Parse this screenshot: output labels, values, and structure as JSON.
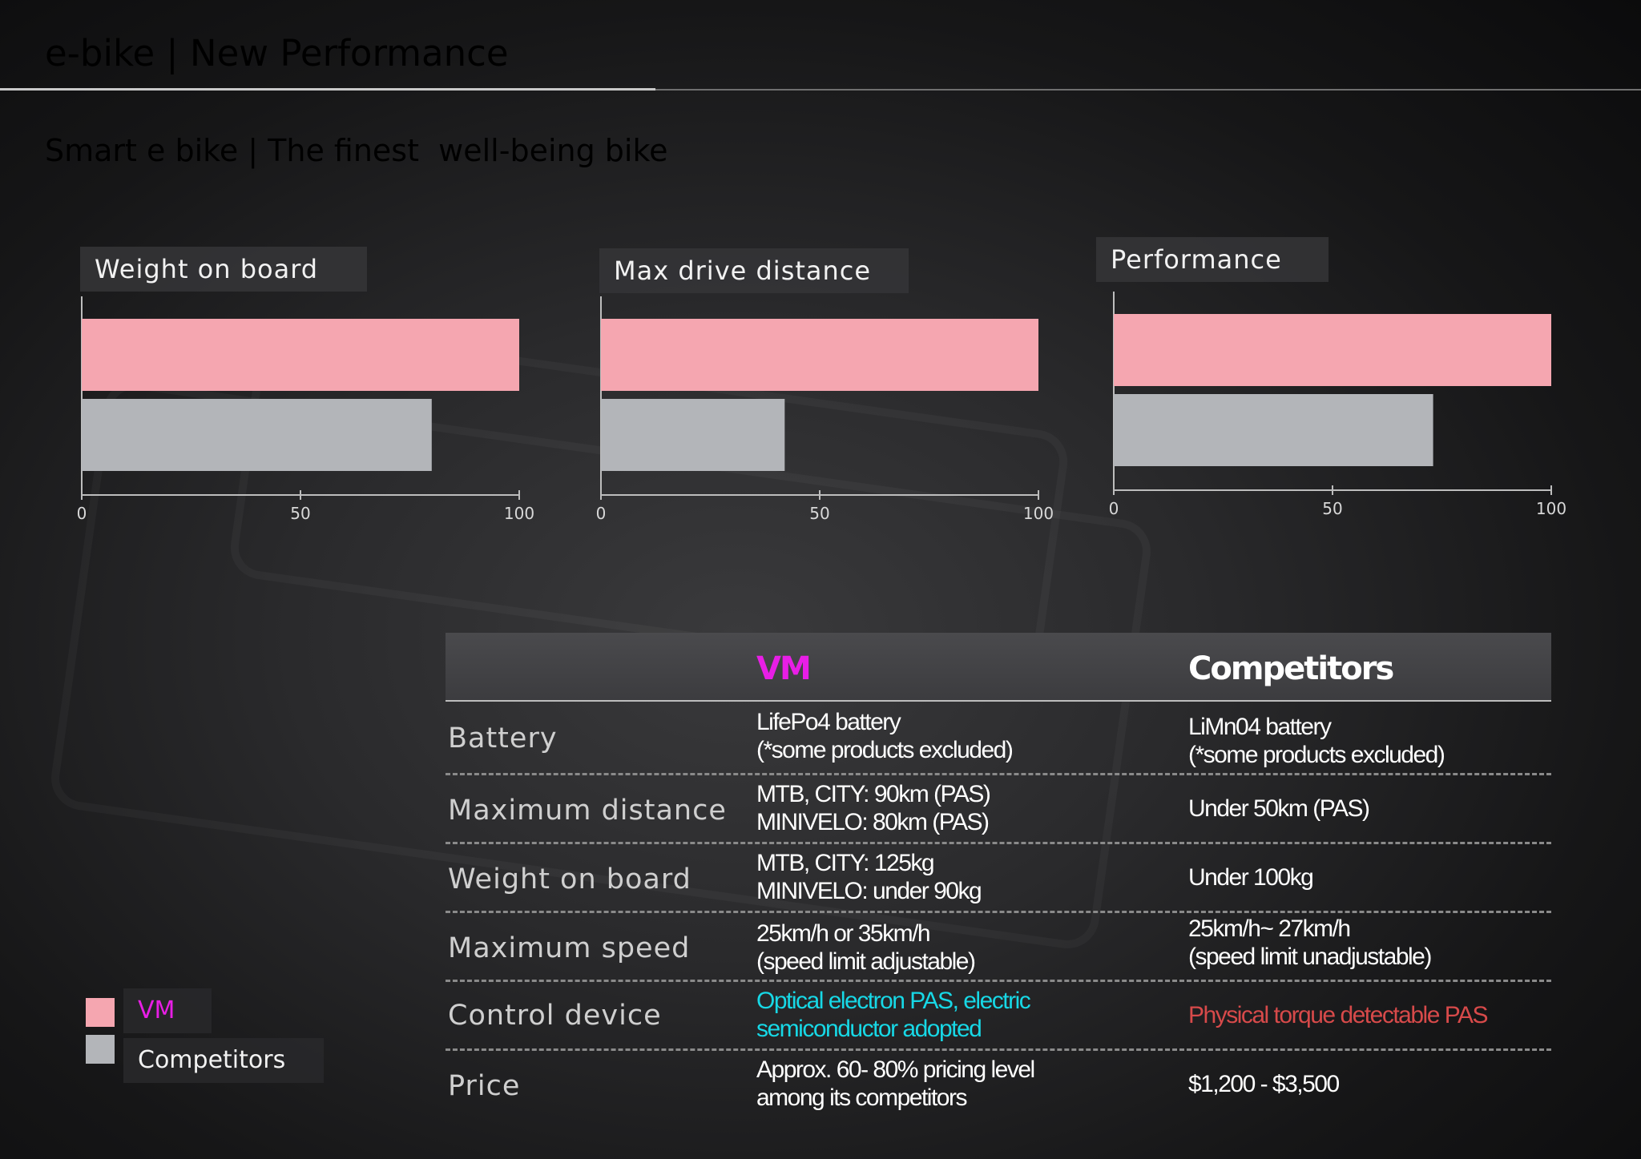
{
  "header": {
    "title": "e-bike | New Performance",
    "subtitle": "Smart e bike | The finest  well-being bike"
  },
  "colors": {
    "title": "#e6ef4a",
    "subtitle": "#7ee89a",
    "vm_bar": "#f5a6b0",
    "competitor_bar": "#b3b5b9",
    "vm_text": "#e81ee6",
    "optical": "#17d8e6",
    "physical": "#d74a4a"
  },
  "chart_data": [
    {
      "type": "bar",
      "title": "Weight on board",
      "orientation": "horizontal",
      "categories": [
        "VM",
        "Competitors"
      ],
      "values": [
        100,
        80
      ],
      "xlim": [
        0,
        100
      ],
      "ticks": [
        "0",
        "50",
        "100"
      ]
    },
    {
      "type": "bar",
      "title": "Max drive distance",
      "orientation": "horizontal",
      "categories": [
        "VM",
        "Competitors"
      ],
      "values": [
        100,
        42
      ],
      "xlim": [
        0,
        100
      ],
      "ticks": [
        "0",
        "50",
        "100"
      ]
    },
    {
      "type": "bar",
      "title": "Performance",
      "orientation": "horizontal",
      "categories": [
        "VM",
        "Competitors"
      ],
      "values": [
        100,
        73
      ],
      "xlim": [
        0,
        100
      ],
      "ticks": [
        "0",
        "50",
        "100"
      ]
    }
  ],
  "legend": [
    {
      "label": "VM",
      "color": "#f5a6b0",
      "text_color": "#e81ee6"
    },
    {
      "label": "Competitors",
      "color": "#b3b5b9",
      "text_color": "#f2f2f2"
    }
  ],
  "table": {
    "headers": {
      "vm": "VM",
      "competitors": "Competitors"
    },
    "rows": [
      {
        "label": "Battery",
        "vm": [
          "LifePo4 battery",
          "(*some products excluded)"
        ],
        "competitors": [
          "LiMn04 battery",
          "(*some products excluded)"
        ]
      },
      {
        "label": "Maximum distance",
        "vm": [
          "MTB, CITY:  90km (PAS)",
          "MINIVELO:  80km (PAS)"
        ],
        "competitors": [
          "Under 50km (PAS)"
        ]
      },
      {
        "label": "Weight on board",
        "vm": [
          "MTB, CITY: 125kg",
          "MINIVELO:  under 90kg"
        ],
        "competitors": [
          "Under 100kg"
        ]
      },
      {
        "label": "Maximum speed",
        "vm": [
          "25km/h or 35km/h",
          "(speed limit adjustable)"
        ],
        "competitors": [
          "25km/h~ 27km/h",
          "(speed limit  unadjustable)"
        ]
      },
      {
        "label": "Control device",
        "vm": [
          "Optical electron PAS, electric",
          "semiconductor adopted"
        ],
        "competitors": [
          "Physical torque detectable PAS"
        ]
      },
      {
        "label": "Price",
        "vm": [
          "Approx. 60- 80% pricing level",
          "among its competitors"
        ],
        "competitors": [
          "$1,200 -  $3,500"
        ]
      }
    ]
  }
}
